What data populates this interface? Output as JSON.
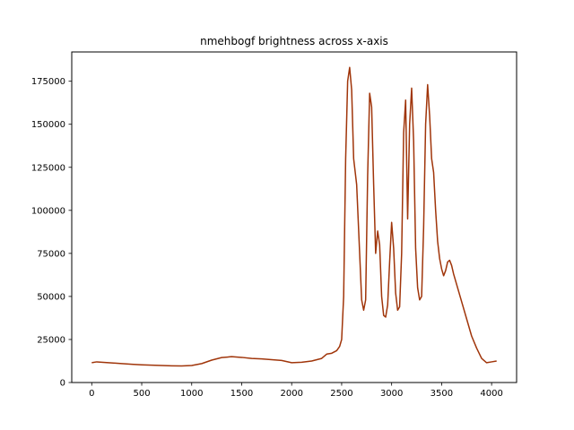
{
  "chart_data": {
    "type": "line",
    "title": "nmehbogf brightness across x-axis",
    "xlabel": "",
    "ylabel": "",
    "xlim": [
      -200,
      4250
    ],
    "ylim": [
      0,
      192000
    ],
    "grid": false,
    "x_ticks": [
      0,
      500,
      1000,
      1500,
      2000,
      2500,
      3000,
      3500,
      4000
    ],
    "x_tick_labels": [
      "0",
      "500",
      "1000",
      "1500",
      "2000",
      "2500",
      "3000",
      "3500",
      "4000"
    ],
    "y_ticks": [
      0,
      25000,
      50000,
      75000,
      100000,
      125000,
      150000,
      175000
    ],
    "y_tick_labels": [
      "0",
      "25000",
      "50000",
      "75000",
      "100000",
      "125000",
      "150000",
      "175000"
    ],
    "series": [
      {
        "color": "#a0350a",
        "x": [
          0,
          50,
          100,
          200,
          300,
          400,
          500,
          600,
          700,
          800,
          900,
          1000,
          1100,
          1200,
          1300,
          1400,
          1500,
          1600,
          1700,
          1800,
          1900,
          2000,
          2100,
          2200,
          2300,
          2350,
          2400,
          2450,
          2480,
          2500,
          2520,
          2540,
          2560,
          2580,
          2600,
          2620,
          2650,
          2680,
          2700,
          2720,
          2740,
          2760,
          2780,
          2800,
          2820,
          2840,
          2860,
          2880,
          2900,
          2920,
          2940,
          2960,
          2980,
          3000,
          3020,
          3040,
          3060,
          3080,
          3100,
          3120,
          3140,
          3160,
          3180,
          3200,
          3220,
          3240,
          3260,
          3280,
          3300,
          3320,
          3340,
          3360,
          3380,
          3400,
          3420,
          3440,
          3460,
          3480,
          3500,
          3520,
          3540,
          3560,
          3580,
          3600,
          3620,
          3650,
          3700,
          3750,
          3800,
          3850,
          3900,
          3950,
          4000,
          4050
        ],
        "y": [
          11500,
          12000,
          11800,
          11400,
          11000,
          10600,
          10300,
          10100,
          9900,
          9700,
          9600,
          9900,
          11000,
          13000,
          14500,
          15000,
          14600,
          14000,
          13700,
          13300,
          12800,
          11500,
          11800,
          12500,
          14000,
          16500,
          17000,
          18500,
          21000,
          25000,
          50000,
          130000,
          175000,
          183000,
          170000,
          130000,
          115000,
          75000,
          48000,
          42000,
          48000,
          120000,
          168000,
          160000,
          115000,
          75000,
          88000,
          80000,
          50000,
          39000,
          38000,
          45000,
          70000,
          93000,
          78000,
          52000,
          42000,
          44000,
          75000,
          145000,
          164000,
          95000,
          150000,
          171000,
          140000,
          78000,
          55000,
          48000,
          50000,
          90000,
          150000,
          173000,
          155000,
          130000,
          122000,
          100000,
          82000,
          72000,
          66000,
          62000,
          65000,
          70000,
          71000,
          68000,
          63000,
          57000,
          47000,
          37000,
          27000,
          20000,
          14000,
          11500,
          12000,
          12500
        ]
      }
    ]
  }
}
